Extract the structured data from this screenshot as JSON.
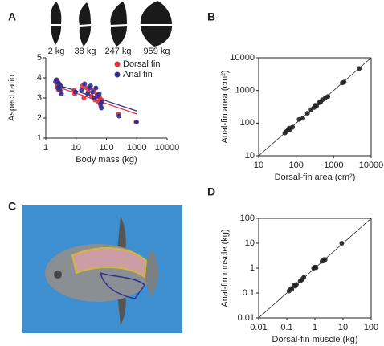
{
  "chart_data": [
    {
      "type": "scatter",
      "panel": "A",
      "xlabel": "Body mass (kg)",
      "ylabel": "Aspect ratio",
      "log_x": true,
      "log_y": false,
      "box": false,
      "legend": "upper right",
      "xlim": [
        1,
        10000
      ],
      "xticks": [
        1,
        10,
        100,
        1000,
        10000
      ],
      "ylim": [
        1,
        5
      ],
      "yticks": [
        1,
        2,
        3,
        4,
        5
      ],
      "silhouette_labels": [
        "2 kg",
        "38 kg",
        "247 kg",
        "959 kg"
      ],
      "series": [
        {
          "name": "Dorsal fin",
          "color": "#e8303a",
          "x": [
            2.2,
            2.4,
            2.6,
            2.8,
            3,
            3.2,
            2.5,
            8.5,
            9,
            16,
            18,
            22,
            25,
            32,
            38,
            42,
            48,
            55,
            60,
            65,
            70,
            250,
            950
          ],
          "values": [
            3.9,
            3.6,
            3.4,
            3.7,
            3.5,
            3.3,
            3.8,
            3.4,
            3.2,
            3.6,
            3.0,
            3.5,
            3.3,
            3.1,
            3.4,
            2.9,
            3.2,
            2.8,
            3.0,
            2.6,
            2.9,
            2.2,
            1.8
          ]
        },
        {
          "name": "Anal fin",
          "color": "#2e3192",
          "x": [
            2.1,
            2.3,
            2.5,
            2.7,
            2.9,
            3.1,
            3.3,
            9.5,
            15,
            19,
            24,
            28,
            30,
            35,
            40,
            45,
            50,
            58,
            63,
            68,
            72,
            260,
            980
          ],
          "values": [
            3.8,
            3.9,
            3.5,
            3.7,
            3.4,
            3.6,
            3.2,
            3.3,
            3.4,
            3.7,
            3.2,
            3.5,
            3.6,
            3.3,
            3.0,
            3.5,
            3.1,
            3.2,
            2.7,
            2.5,
            2.8,
            2.1,
            1.8
          ]
        }
      ],
      "fit_lines": [
        {
          "color": "#e8303a",
          "x": [
            2,
            1000
          ],
          "values": [
            3.6,
            2.2
          ]
        },
        {
          "color": "#2e3192",
          "x": [
            2,
            1000
          ],
          "values": [
            3.7,
            2.35
          ]
        }
      ]
    },
    {
      "type": "scatter",
      "panel": "B",
      "xlabel": "Dorsal-fin area (cm²)",
      "ylabel": "Anal-fin area (cm²)",
      "log_x": true,
      "log_y": true,
      "box": true,
      "diagonal": true,
      "xlim": [
        10,
        10000
      ],
      "xticks": [
        10,
        100,
        1000,
        10000
      ],
      "ylim": [
        10,
        10000
      ],
      "yticks": [
        10,
        100,
        1000,
        10000
      ],
      "series": [
        {
          "color": "#222222",
          "x": [
            50,
            55,
            60,
            65,
            70,
            80,
            120,
            150,
            200,
            250,
            300,
            320,
            350,
            400,
            450,
            500,
            600,
            700,
            1700,
            1900,
            4800
          ],
          "values": [
            50,
            55,
            60,
            70,
            65,
            75,
            130,
            140,
            200,
            260,
            300,
            350,
            340,
            420,
            440,
            520,
            600,
            650,
            1700,
            1800,
            4700
          ]
        }
      ]
    },
    {
      "type": "scatter",
      "panel": "D",
      "xlabel": "Dorsal-fin muscle (kg)",
      "ylabel": "Anal-fin muscle (kg)",
      "log_x": true,
      "log_y": true,
      "box": true,
      "diagonal": true,
      "xlim": [
        0.01,
        100
      ],
      "xticks": [
        0.01,
        0.1,
        1,
        10,
        100
      ],
      "ylim": [
        0.01,
        100
      ],
      "yticks": [
        0.01,
        0.1,
        1,
        10,
        100
      ],
      "series": [
        {
          "color": "#222222",
          "x": [
            0.12,
            0.14,
            0.15,
            0.18,
            0.2,
            0.22,
            0.3,
            0.35,
            0.4,
            0.9,
            1,
            1.1,
            1.8,
            2.1,
            2.3,
            9
          ],
          "values": [
            0.12,
            0.15,
            0.14,
            0.2,
            0.19,
            0.22,
            0.3,
            0.35,
            0.42,
            1,
            1.1,
            1.05,
            1.9,
            2.2,
            2.2,
            10
          ]
        }
      ]
    }
  ],
  "photo": {
    "panel": "C"
  }
}
